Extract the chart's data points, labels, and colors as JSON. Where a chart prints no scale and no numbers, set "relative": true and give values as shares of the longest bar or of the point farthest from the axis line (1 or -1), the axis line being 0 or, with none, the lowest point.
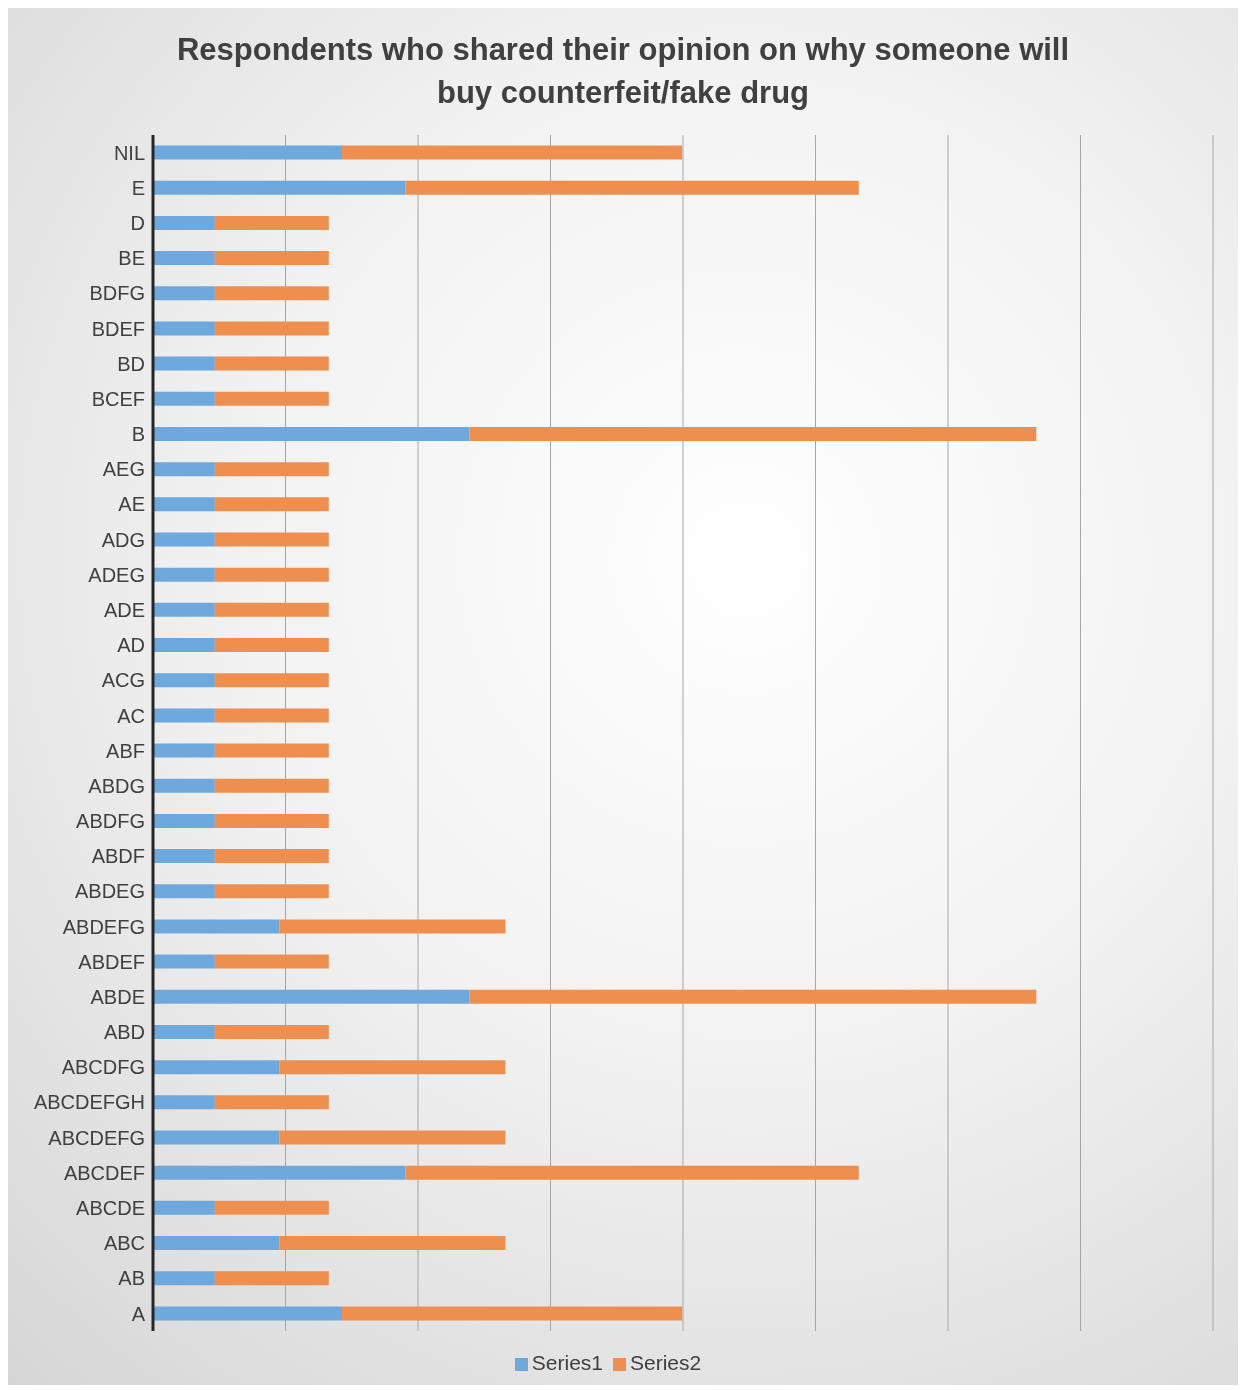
{
  "chart_data": {
    "type": "bar",
    "title": "Respondents who shared their opinion on why someone will buy counterfeit/fake drug",
    "orientation": "horizontal",
    "stacked": true,
    "relative": true,
    "grid": "x",
    "legend": "bottom",
    "categories": [
      "NIL",
      "E",
      "D",
      "BE",
      "BDFG",
      "BDEF",
      "BD",
      "BCEF",
      "B",
      "AEG",
      "AE",
      "ADG",
      "ADEG",
      "ADE",
      "AD",
      "ACG",
      "AC",
      "ABF",
      "ABDG",
      "ABDFG",
      "ABDF",
      "ABDEG",
      "ABDEFG",
      "ABDEF",
      "ABDE",
      "ABD",
      "ABCDFG",
      "ABCDEFGH",
      "ABCDEFG",
      "ABCDEF",
      "ABCDE",
      "ABC",
      "AB",
      "A"
    ],
    "series": [
      {
        "name": "Series1",
        "color": "#6fa8dc",
        "values": [
          0.214,
          0.286,
          0.07,
          0.07,
          0.07,
          0.07,
          0.07,
          0.07,
          0.358,
          0.07,
          0.07,
          0.07,
          0.07,
          0.07,
          0.07,
          0.07,
          0.07,
          0.07,
          0.07,
          0.07,
          0.07,
          0.07,
          0.143,
          0.07,
          0.358,
          0.07,
          0.143,
          0.07,
          0.143,
          0.286,
          0.07,
          0.143,
          0.07,
          0.214
        ]
      },
      {
        "name": "Series2",
        "color": "#ef8f4f",
        "values": [
          0.385,
          0.513,
          0.129,
          0.129,
          0.129,
          0.129,
          0.129,
          0.129,
          0.642,
          0.129,
          0.129,
          0.129,
          0.129,
          0.129,
          0.129,
          0.129,
          0.129,
          0.129,
          0.129,
          0.129,
          0.129,
          0.129,
          0.256,
          0.129,
          0.642,
          0.129,
          0.256,
          0.129,
          0.256,
          0.513,
          0.129,
          0.256,
          0.129,
          0.385
        ]
      }
    ]
  }
}
